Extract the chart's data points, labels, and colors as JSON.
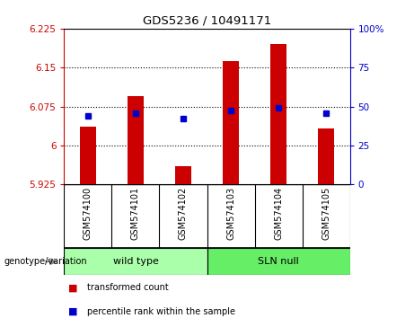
{
  "title": "GDS5236 / 10491171",
  "samples": [
    "GSM574100",
    "GSM574101",
    "GSM574102",
    "GSM574103",
    "GSM574104",
    "GSM574105"
  ],
  "red_bar_tops": [
    6.036,
    6.095,
    5.96,
    6.163,
    6.195,
    6.033
  ],
  "blue_dot_values": [
    6.057,
    6.063,
    6.051,
    6.068,
    6.073,
    6.063
  ],
  "y_min": 5.925,
  "y_max": 6.225,
  "y_ticks": [
    5.925,
    6.0,
    6.075,
    6.15,
    6.225
  ],
  "y_tick_labels": [
    "5.925",
    "6",
    "6.075",
    "6.15",
    "6.225"
  ],
  "right_y_ticks": [
    0,
    25,
    50,
    75,
    100
  ],
  "right_y_tick_labels": [
    "0",
    "25",
    "50",
    "75",
    "100%"
  ],
  "bar_color": "#cc0000",
  "dot_color": "#0000cc",
  "groups": [
    {
      "label": "wild type",
      "samples": [
        0,
        1,
        2
      ]
    },
    {
      "label": "SLN null",
      "samples": [
        3,
        4,
        5
      ]
    }
  ],
  "group_colors": [
    "#aaffaa",
    "#66ee66"
  ],
  "tick_area_color": "#cccccc",
  "genotype_label": "genotype/variation",
  "legend_items": [
    {
      "color": "#cc0000",
      "label": "transformed count"
    },
    {
      "color": "#0000cc",
      "label": "percentile rank within the sample"
    }
  ],
  "left_axis_color": "#cc0000",
  "right_axis_color": "#0000cc",
  "grid_yticks": [
    6.0,
    6.075,
    6.15
  ]
}
